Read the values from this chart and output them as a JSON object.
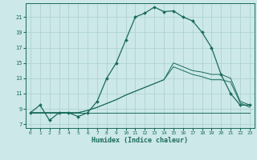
{
  "title": "",
  "xlabel": "Humidex (Indice chaleur)",
  "background_color": "#cce8e8",
  "grid_color": "#aacfcf",
  "line_color": "#1a6b5a",
  "x_ticks": [
    0,
    1,
    2,
    3,
    4,
    5,
    6,
    7,
    8,
    9,
    10,
    11,
    12,
    13,
    14,
    15,
    16,
    17,
    18,
    19,
    20,
    21,
    22,
    23
  ],
  "y_ticks": [
    7,
    9,
    11,
    13,
    15,
    17,
    19,
    21
  ],
  "ylim": [
    6.5,
    22.8
  ],
  "xlim": [
    -0.5,
    23.5
  ],
  "line1_x": [
    0,
    1,
    2,
    3,
    4,
    5,
    6,
    7,
    8,
    9,
    10,
    11,
    12,
    13,
    14,
    15,
    16,
    17,
    18,
    19,
    20,
    21,
    22,
    23
  ],
  "line1_y": [
    8.5,
    9.5,
    7.5,
    8.5,
    8.5,
    8.0,
    8.5,
    10.0,
    13.0,
    15.0,
    18.0,
    21.0,
    21.5,
    22.3,
    21.7,
    21.8,
    21.0,
    20.5,
    19.0,
    17.0,
    13.5,
    11.0,
    9.5,
    9.5
  ],
  "line2_x": [
    0,
    1,
    2,
    3,
    4,
    5,
    6,
    7,
    8,
    9,
    10,
    11,
    12,
    13,
    14,
    15,
    16,
    17,
    18,
    19,
    20,
    21,
    22,
    23
  ],
  "line2_y": [
    8.5,
    8.5,
    8.5,
    8.5,
    8.5,
    8.5,
    8.5,
    8.5,
    8.5,
    8.5,
    8.5,
    8.5,
    8.5,
    8.5,
    8.5,
    8.5,
    8.5,
    8.5,
    8.5,
    8.5,
    8.5,
    8.5,
    8.5,
    8.5
  ],
  "line3_x": [
    0,
    5,
    6,
    7,
    8,
    9,
    10,
    11,
    12,
    13,
    14,
    15,
    16,
    17,
    18,
    19,
    20,
    21,
    22,
    23
  ],
  "line3_y": [
    8.5,
    8.5,
    8.8,
    9.2,
    9.7,
    10.2,
    10.8,
    11.3,
    11.8,
    12.3,
    12.8,
    15.0,
    14.5,
    14.0,
    13.8,
    13.5,
    13.5,
    13.0,
    10.0,
    9.5
  ],
  "line4_x": [
    0,
    5,
    6,
    7,
    8,
    9,
    10,
    11,
    12,
    13,
    14,
    15,
    16,
    17,
    18,
    19,
    20,
    21,
    22,
    23
  ],
  "line4_y": [
    8.5,
    8.5,
    8.8,
    9.2,
    9.7,
    10.2,
    10.8,
    11.3,
    11.8,
    12.3,
    12.8,
    14.5,
    14.0,
    13.5,
    13.2,
    12.8,
    12.8,
    12.5,
    9.8,
    9.2
  ]
}
